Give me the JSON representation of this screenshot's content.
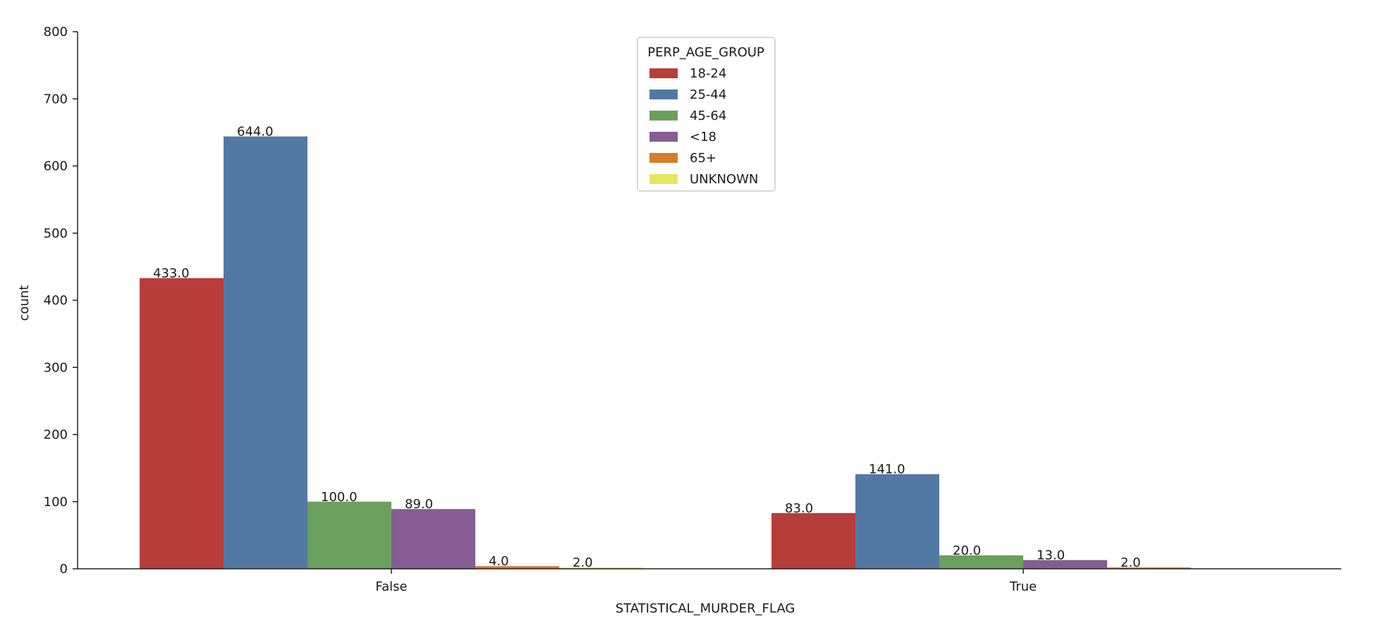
{
  "chart_data": {
    "type": "bar",
    "categories": [
      "False",
      "True"
    ],
    "series": [
      {
        "name": "18-24",
        "values": [
          433,
          83
        ],
        "color": "#b73d3b"
      },
      {
        "name": "25-44",
        "values": [
          644,
          141
        ],
        "color": "#5279a4"
      },
      {
        "name": "45-64",
        "values": [
          100,
          20
        ],
        "color": "#6a9f5c"
      },
      {
        "name": "<18",
        "values": [
          89,
          13
        ],
        "color": "#855c93"
      },
      {
        "name": "65+",
        "values": [
          4,
          2
        ],
        "color": "#d97c2c"
      },
      {
        "name": "UNKNOWN",
        "values": [
          2,
          0
        ],
        "color": "#e6e560"
      }
    ],
    "data_labels": [
      [
        "433.0",
        "83.0"
      ],
      [
        "644.0",
        "141.0"
      ],
      [
        "100.0",
        "20.0"
      ],
      [
        "89.0",
        "13.0"
      ],
      [
        "4.0",
        "2.0"
      ],
      [
        "2.0",
        ""
      ]
    ],
    "xlabel": "STATISTICAL_MURDER_FLAG",
    "ylabel": "count",
    "ylim": [
      0,
      800
    ],
    "yticks": [
      0,
      100,
      200,
      300,
      400,
      500,
      600,
      700,
      800
    ],
    "grid": false,
    "legend": {
      "title": "PERP_AGE_GROUP",
      "placement": "upper center"
    }
  }
}
